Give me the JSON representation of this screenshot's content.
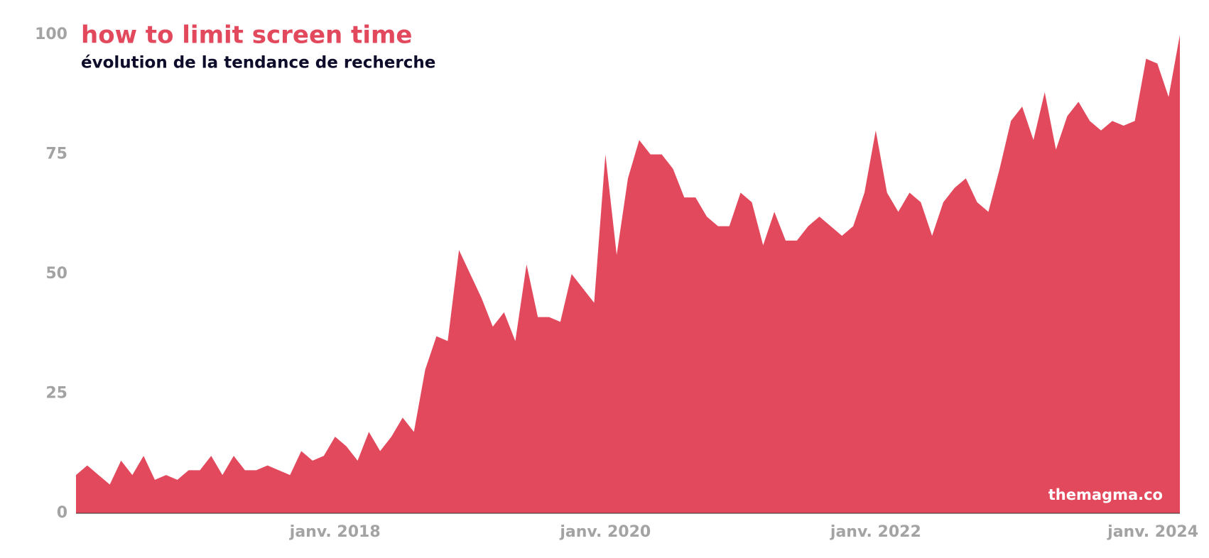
{
  "chart_data": {
    "type": "area",
    "title": "how to limit screen time",
    "subtitle": "évolution de la tendance de recherche",
    "watermark": "themagma.co",
    "x": [
      "2016-02",
      "2016-03",
      "2016-04",
      "2016-05",
      "2016-06",
      "2016-07",
      "2016-08",
      "2016-09",
      "2016-10",
      "2016-11",
      "2016-12",
      "2017-01",
      "2017-02",
      "2017-03",
      "2017-04",
      "2017-05",
      "2017-06",
      "2017-07",
      "2017-08",
      "2017-09",
      "2017-10",
      "2017-11",
      "2017-12",
      "2018-01",
      "2018-02",
      "2018-03",
      "2018-04",
      "2018-05",
      "2018-06",
      "2018-07",
      "2018-08",
      "2018-09",
      "2018-10",
      "2018-11",
      "2018-12",
      "2019-01",
      "2019-02",
      "2019-03",
      "2019-04",
      "2019-05",
      "2019-06",
      "2019-07",
      "2019-08",
      "2019-09",
      "2019-10",
      "2019-11",
      "2019-12",
      "2020-01",
      "2020-02",
      "2020-03",
      "2020-04",
      "2020-05",
      "2020-06",
      "2020-07",
      "2020-08",
      "2020-09",
      "2020-10",
      "2020-11",
      "2020-12",
      "2021-01",
      "2021-02",
      "2021-03",
      "2021-04",
      "2021-05",
      "2021-06",
      "2021-07",
      "2021-08",
      "2021-09",
      "2021-10",
      "2021-11",
      "2021-12",
      "2022-01",
      "2022-02",
      "2022-03",
      "2022-04",
      "2022-05",
      "2022-06",
      "2022-07",
      "2022-08",
      "2022-09",
      "2022-10",
      "2022-11",
      "2022-12",
      "2023-01",
      "2023-02",
      "2023-03",
      "2023-04",
      "2023-05",
      "2023-06",
      "2023-07",
      "2023-08",
      "2023-09",
      "2023-10",
      "2023-11",
      "2023-12",
      "2024-01",
      "2024-02",
      "2024-03",
      "2024-04"
    ],
    "values": [
      8,
      10,
      8,
      6,
      11,
      8,
      12,
      7,
      8,
      7,
      9,
      9,
      12,
      8,
      12,
      9,
      9,
      10,
      9,
      8,
      13,
      11,
      12,
      16,
      14,
      11,
      17,
      13,
      16,
      20,
      17,
      30,
      37,
      36,
      55,
      50,
      45,
      39,
      42,
      36,
      52,
      41,
      41,
      40,
      50,
      47,
      44,
      75,
      54,
      70,
      78,
      75,
      75,
      72,
      66,
      66,
      62,
      60,
      60,
      67,
      65,
      56,
      63,
      57,
      57,
      60,
      62,
      60,
      58,
      60,
      67,
      80,
      67,
      63,
      67,
      65,
      58,
      65,
      68,
      70,
      65,
      63,
      72,
      82,
      85,
      78,
      88,
      76,
      83,
      86,
      82,
      80,
      82,
      81,
      82,
      95,
      94,
      87,
      100
    ],
    "color": "#e2495c",
    "xlim": [
      "2016-02",
      "2024-04"
    ],
    "xticks": [
      {
        "value": "2018-01",
        "label": "janv. 2018"
      },
      {
        "value": "2020-01",
        "label": "janv. 2020"
      },
      {
        "value": "2022-01",
        "label": "janv. 2022"
      },
      {
        "value": "2024-01",
        "label": "janv. 2024"
      }
    ],
    "ylim": [
      0,
      100
    ],
    "yticks": [
      0,
      25,
      50,
      75,
      100
    ],
    "grid": false
  }
}
